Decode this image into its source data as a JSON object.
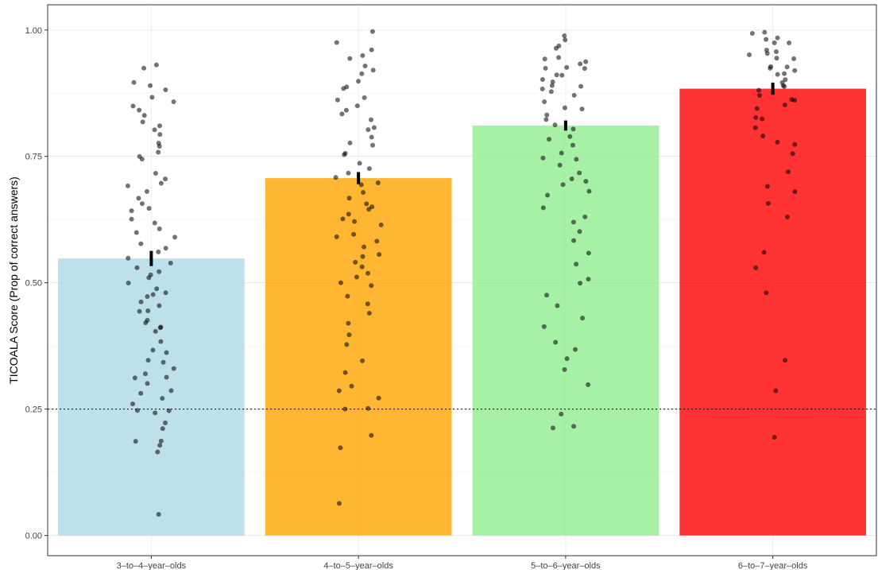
{
  "chart_data": {
    "type": "bar",
    "title": "",
    "xlabel": "",
    "ylabel": "TICOALA Score (Prop of correct answers)",
    "categories": [
      "3–to–4–year–olds",
      "4–to–5–year–olds",
      "5–to–6–year–olds",
      "6–to–7–year–olds"
    ],
    "values": [
      0.548,
      0.707,
      0.811,
      0.884
    ],
    "error": [
      0.015,
      0.012,
      0.01,
      0.012
    ],
    "colors": [
      "#add8e6",
      "#ffa500",
      "#90ee90",
      "#ff0000"
    ],
    "ylim": [
      -0.04,
      1.05
    ],
    "yticks": [
      0.0,
      0.25,
      0.5,
      0.75,
      1.0
    ],
    "ytick_labels": [
      "0.00",
      "0.25",
      "0.50",
      "0.75",
      "1.00"
    ],
    "reference_line": {
      "y": 0.25,
      "style": "dotted"
    },
    "grid": true,
    "points": [
      [
        0.04,
        0.17,
        0.18,
        0.19,
        0.19,
        0.21,
        0.22,
        0.24,
        0.25,
        0.25,
        0.26,
        0.27,
        0.28,
        0.29,
        0.3,
        0.31,
        0.31,
        0.32,
        0.33,
        0.34,
        0.35,
        0.36,
        0.37,
        0.38,
        0.4,
        0.41,
        0.41,
        0.42,
        0.43,
        0.44,
        0.44,
        0.45,
        0.46,
        0.47,
        0.48,
        0.48,
        0.49,
        0.5,
        0.51,
        0.52,
        0.52,
        0.53,
        0.54,
        0.55,
        0.56,
        0.57,
        0.58,
        0.59,
        0.6,
        0.61,
        0.62,
        0.63,
        0.64,
        0.65,
        0.66,
        0.67,
        0.68,
        0.69,
        0.7,
        0.71,
        0.72,
        0.74,
        0.75,
        0.76,
        0.77,
        0.78,
        0.79,
        0.8,
        0.81,
        0.82,
        0.83,
        0.84,
        0.85,
        0.86,
        0.87,
        0.88,
        0.89,
        0.9,
        0.92,
        0.93
      ],
      [
        0.06,
        0.17,
        0.2,
        0.25,
        0.25,
        0.27,
        0.29,
        0.3,
        0.32,
        0.35,
        0.38,
        0.4,
        0.42,
        0.44,
        0.46,
        0.47,
        0.49,
        0.5,
        0.51,
        0.52,
        0.53,
        0.54,
        0.55,
        0.56,
        0.57,
        0.58,
        0.59,
        0.6,
        0.61,
        0.62,
        0.63,
        0.64,
        0.65,
        0.65,
        0.66,
        0.67,
        0.68,
        0.69,
        0.7,
        0.71,
        0.72,
        0.73,
        0.74,
        0.75,
        0.76,
        0.77,
        0.78,
        0.79,
        0.8,
        0.81,
        0.82,
        0.83,
        0.84,
        0.85,
        0.86,
        0.87,
        0.88,
        0.89,
        0.9,
        0.91,
        0.92,
        0.93,
        0.94,
        0.95,
        0.96,
        0.98,
        1.0
      ],
      [
        0.21,
        0.22,
        0.24,
        0.3,
        0.33,
        0.35,
        0.37,
        0.38,
        0.41,
        0.43,
        0.45,
        0.48,
        0.5,
        0.51,
        0.54,
        0.56,
        0.58,
        0.6,
        0.62,
        0.63,
        0.65,
        0.67,
        0.68,
        0.69,
        0.7,
        0.71,
        0.72,
        0.73,
        0.74,
        0.75,
        0.76,
        0.77,
        0.78,
        0.79,
        0.8,
        0.81,
        0.82,
        0.83,
        0.84,
        0.85,
        0.86,
        0.87,
        0.88,
        0.88,
        0.89,
        0.89,
        0.9,
        0.9,
        0.91,
        0.91,
        0.92,
        0.92,
        0.93,
        0.93,
        0.94,
        0.94,
        0.95,
        0.96,
        0.97,
        0.98,
        0.99
      ],
      [
        0.19,
        0.29,
        0.35,
        0.48,
        0.53,
        0.56,
        0.63,
        0.66,
        0.68,
        0.69,
        0.72,
        0.76,
        0.77,
        0.78,
        0.79,
        0.81,
        0.82,
        0.83,
        0.84,
        0.85,
        0.86,
        0.86,
        0.87,
        0.88,
        0.89,
        0.89,
        0.9,
        0.9,
        0.91,
        0.91,
        0.92,
        0.92,
        0.93,
        0.93,
        0.94,
        0.94,
        0.95,
        0.95,
        0.96,
        0.96,
        0.97,
        0.97,
        0.98,
        0.98,
        0.99,
        1.0
      ]
    ]
  }
}
